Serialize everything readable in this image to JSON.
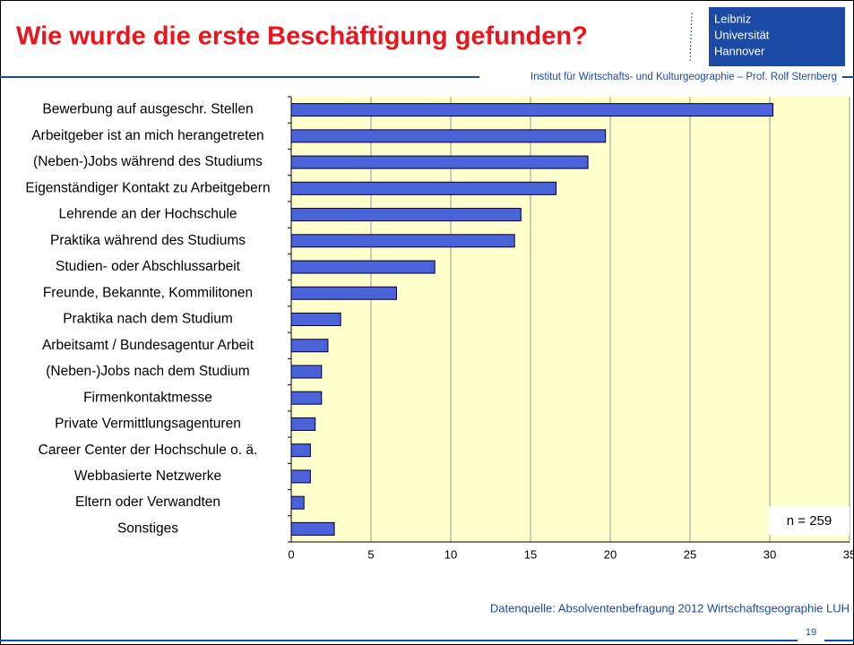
{
  "header": {
    "title": "Wie wurde die erste Beschäftigung gefunden?",
    "institute": "Institut für Wirtschafts- und Kulturgeographie – Prof. Rolf Sternberg",
    "logo": [
      "Leibniz",
      "Universität",
      "Hannover"
    ]
  },
  "chart_data": {
    "type": "hbar",
    "categories": [
      "Bewerbung auf ausgeschr. Stellen",
      "Arbeitgeber ist an mich herangetreten",
      "(Neben-)Jobs während des Studiums",
      "Eigenständiger Kontakt zu Arbeitgebern",
      "Lehrende an der Hochschule",
      "Praktika während des Studiums",
      "Studien- oder Abschlussarbeit",
      "Freunde, Bekannte, Kommilitonen",
      "Praktika nach dem Studium",
      "Arbeitsamt / Bundesagentur Arbeit",
      "(Neben-)Jobs nach dem Studium",
      "Firmenkontaktmesse",
      "Private Vermittlungsagenturen",
      "Career Center der Hochschule o. ä.",
      "Webbasierte Netzwerke",
      "Eltern oder Verwandten",
      "Sonstiges"
    ],
    "values": [
      30.2,
      19.7,
      18.6,
      16.6,
      14.4,
      14.0,
      9.0,
      6.6,
      3.1,
      2.3,
      1.9,
      1.9,
      1.5,
      1.2,
      1.2,
      0.8,
      2.7
    ],
    "color": "#4a63d8",
    "xlim": [
      0,
      35
    ],
    "xticks": [
      0,
      5,
      10,
      15,
      20,
      25,
      30,
      35
    ],
    "grid": true,
    "annotation": "n = 259"
  },
  "footer": {
    "source": "Datenquelle: Absolventenbefragung 2012 Wirtschaftsgeographie LUH",
    "page": "19"
  }
}
